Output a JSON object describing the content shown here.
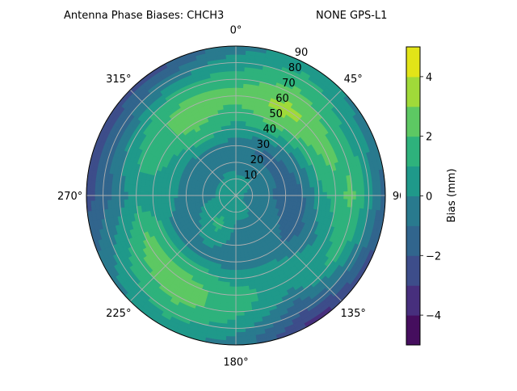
{
  "chart_data": {
    "type": "heatmap",
    "subtype": "polar-filled-contour",
    "title_left": "Antenna Phase Biases: CHCH3",
    "title_right": "NONE GPS-L1",
    "angular_axis": {
      "direction": "clockwise",
      "zero_location": "top",
      "tick_labels": [
        "0°",
        "45°",
        "90°",
        "135°",
        "180°",
        "225°",
        "270°",
        "315°"
      ],
      "tick_values": [
        0,
        45,
        90,
        135,
        180,
        225,
        270,
        315
      ]
    },
    "radial_axis": {
      "range": [
        0,
        90
      ],
      "tick_labels": [
        "10",
        "20",
        "30",
        "40",
        "50",
        "60",
        "70",
        "80",
        "90"
      ],
      "tick_values": [
        10,
        20,
        30,
        40,
        50,
        60,
        70,
        80,
        90
      ]
    },
    "grid": true,
    "colorbar": {
      "label": "Bias (mm)",
      "levels": [
        -5,
        -4,
        -3,
        -2,
        -1,
        0,
        1,
        2,
        3,
        4,
        5
      ],
      "tick_values": [
        -4,
        -2,
        0,
        2,
        4
      ],
      "tick_labels": [
        "−4",
        "−2",
        "0",
        "2",
        "4"
      ],
      "colors": [
        "#450e5e",
        "#472f7d",
        "#3d4d8a",
        "#31658d",
        "#297a8e",
        "#1f998a",
        "#2eb27c",
        "#5dc863",
        "#a0da39",
        "#e2e418"
      ],
      "colormap": "viridis",
      "placement": "right"
    },
    "azimuths": [
      0,
      30,
      60,
      90,
      120,
      150,
      180,
      210,
      240,
      270,
      300,
      330
    ],
    "zeniths": [
      0,
      10,
      20,
      30,
      40,
      50,
      60,
      70,
      80,
      90
    ],
    "values_by_azimuth": [
      [
        0.3,
        0.3,
        -0.5,
        -0.5,
        0.5,
        1.5,
        2.3,
        1.5,
        0.5,
        -0.5
      ],
      [
        0.3,
        0.2,
        -0.5,
        -1.2,
        0.5,
        2.5,
        3.5,
        2.5,
        1.5,
        0.5
      ],
      [
        0.3,
        0.0,
        -0.5,
        -1.5,
        -0.5,
        1.5,
        2.5,
        1.5,
        0.5,
        -0.5
      ],
      [
        0.3,
        -0.3,
        -0.8,
        -1.5,
        -1.2,
        0.5,
        1.5,
        2.3,
        0.5,
        -1.5
      ],
      [
        0.3,
        -0.3,
        -0.5,
        -1.0,
        -1.5,
        -0.5,
        0.5,
        1.5,
        -0.5,
        -2.5
      ],
      [
        0.3,
        0.3,
        -0.5,
        -0.7,
        -0.5,
        0.5,
        0.5,
        -0.5,
        -2.0,
        -3.5
      ],
      [
        0.3,
        0.3,
        -0.3,
        -0.5,
        -0.5,
        0.5,
        1.5,
        1.5,
        0.5,
        -0.5
      ],
      [
        0.3,
        0.5,
        1.5,
        0.5,
        -0.5,
        1.5,
        2.5,
        2.5,
        1.5,
        0.5
      ],
      [
        0.3,
        0.3,
        0.5,
        -0.5,
        -0.5,
        1.5,
        2.5,
        1.5,
        0.5,
        -0.5
      ],
      [
        0.3,
        0.2,
        -0.5,
        -0.7,
        0.5,
        0.5,
        0.5,
        -0.5,
        -1.5,
        -2.5
      ],
      [
        0.3,
        0.2,
        -0.5,
        -0.5,
        0.5,
        1.5,
        1.5,
        0.5,
        -1.5,
        -2.5
      ],
      [
        0.3,
        0.3,
        -0.5,
        -0.5,
        1.5,
        2.5,
        2.5,
        1.5,
        -0.5,
        -2.5
      ]
    ]
  }
}
